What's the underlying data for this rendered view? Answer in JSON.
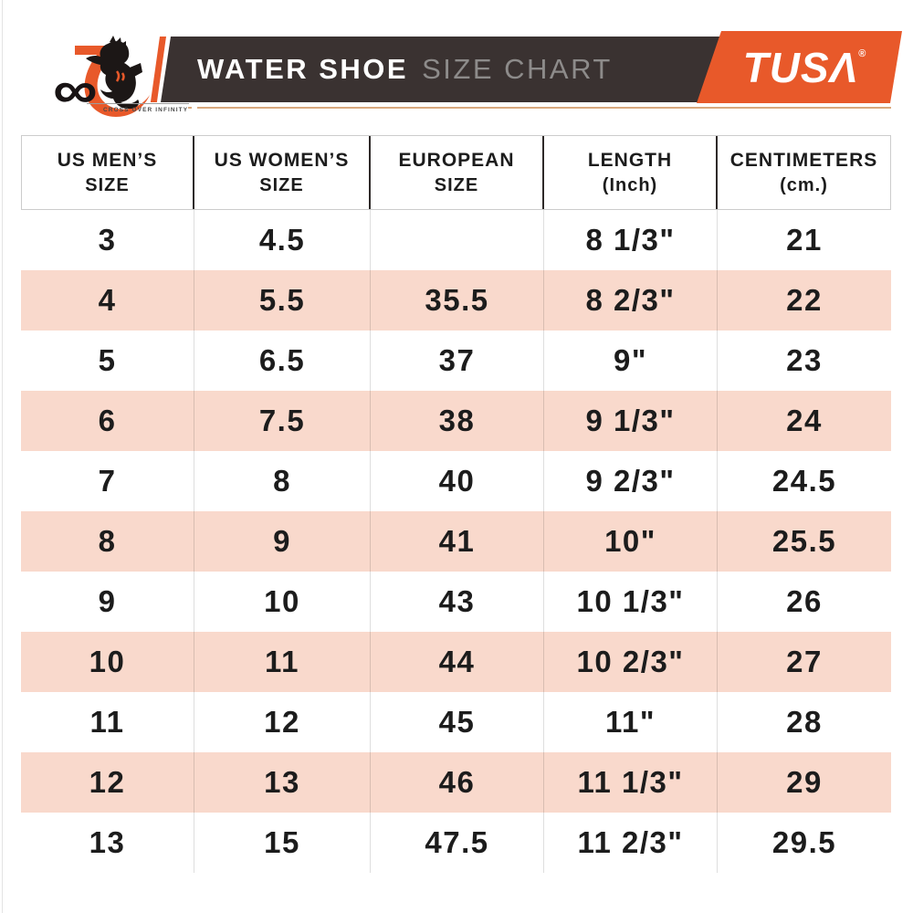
{
  "colors": {
    "accent_orange": "#e8592a",
    "banner_dark": "#3a3231",
    "row_pink": "#f9d9cc",
    "title_gray": "#8d8b8a",
    "text_dark": "#1c1c1c",
    "line_tan": "#d9a87e"
  },
  "header": {
    "logo70": {
      "seven": "7",
      "infinity": "∞",
      "tagline": "CROSS OVER INFINITY"
    },
    "banner": {
      "title_bold": "WATER SHOE",
      "title_light": "SIZE CHART"
    },
    "tusa": {
      "text": "TUSΛ",
      "registered": "®"
    }
  },
  "table": {
    "headers": [
      {
        "line1": "US MEN’S",
        "line2": "SIZE"
      },
      {
        "line1": "US WOMEN’S",
        "line2": "SIZE"
      },
      {
        "line1": "EUROPEAN",
        "line2": "SIZE"
      },
      {
        "line1": "LENGTH",
        "line2": "(Inch)"
      },
      {
        "line1": "CENTIMETERS",
        "line2": "(cm.)"
      }
    ],
    "rows": [
      [
        "3",
        "4.5",
        "",
        "8 1/3\"",
        "21"
      ],
      [
        "4",
        "5.5",
        "35.5",
        "8 2/3\"",
        "22"
      ],
      [
        "5",
        "6.5",
        "37",
        "9\"",
        "23"
      ],
      [
        "6",
        "7.5",
        "38",
        "9 1/3\"",
        "24"
      ],
      [
        "7",
        "8",
        "40",
        "9 2/3\"",
        "24.5"
      ],
      [
        "8",
        "9",
        "41",
        "10\"",
        "25.5"
      ],
      [
        "9",
        "10",
        "43",
        "10 1/3\"",
        "26"
      ],
      [
        "10",
        "11",
        "44",
        "10 2/3\"",
        "27"
      ],
      [
        "11",
        "12",
        "45",
        "11\"",
        "28"
      ],
      [
        "12",
        "13",
        "46",
        "11 1/3\"",
        "29"
      ],
      [
        "13",
        "15",
        "47.5",
        "11 2/3\"",
        "29.5"
      ]
    ]
  },
  "chart_data": {
    "type": "table",
    "title": "WATER SHOE SIZE CHART",
    "columns": [
      "US MEN'S SIZE",
      "US WOMEN'S SIZE",
      "EUROPEAN SIZE",
      "LENGTH (Inch)",
      "CENTIMETERS (cm.)"
    ],
    "rows": [
      [
        "3",
        "4.5",
        "",
        "8 1/3\"",
        "21"
      ],
      [
        "4",
        "5.5",
        "35.5",
        "8 2/3\"",
        "22"
      ],
      [
        "5",
        "6.5",
        "37",
        "9\"",
        "23"
      ],
      [
        "6",
        "7.5",
        "38",
        "9 1/3\"",
        "24"
      ],
      [
        "7",
        "8",
        "40",
        "9 2/3\"",
        "24.5"
      ],
      [
        "8",
        "9",
        "41",
        "10\"",
        "25.5"
      ],
      [
        "9",
        "10",
        "43",
        "10 1/3\"",
        "26"
      ],
      [
        "10",
        "11",
        "44",
        "10 2/3\"",
        "27"
      ],
      [
        "11",
        "12",
        "45",
        "11\"",
        "28"
      ],
      [
        "12",
        "13",
        "46",
        "11 1/3\"",
        "29"
      ],
      [
        "13",
        "15",
        "47.5",
        "11 2/3\"",
        "29.5"
      ]
    ],
    "layout_hints": {
      "alternating_row_highlight": "#f9d9cc",
      "highlighted_rows": [
        2,
        4,
        6,
        8,
        10
      ]
    }
  }
}
